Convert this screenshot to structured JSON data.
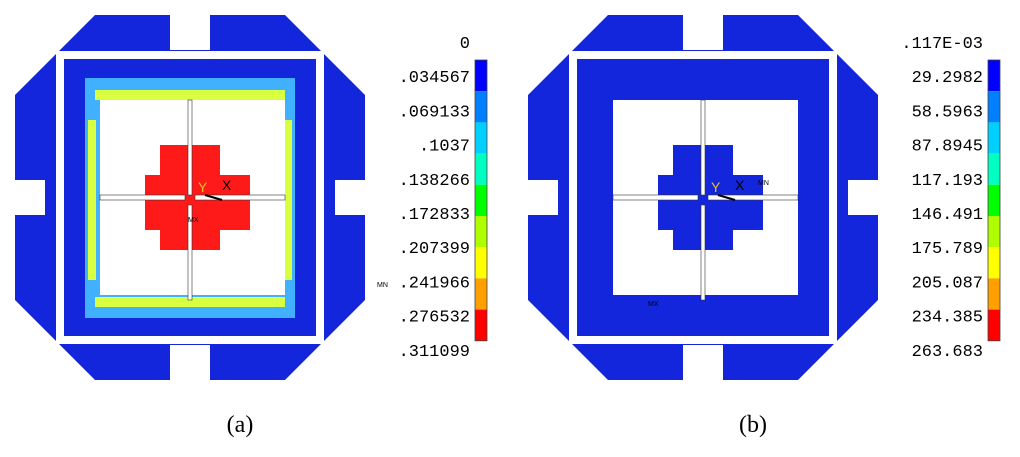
{
  "panels": [
    {
      "legend": [
        "0",
        ".034567",
        ".069133",
        ".1037",
        ".138266",
        ".172833",
        ".207399",
        ".241966",
        ".276532",
        ".311099"
      ],
      "caption": "(a)",
      "triad": [
        "Y",
        "X"
      ],
      "markers": [
        "MX",
        "MN"
      ]
    },
    {
      "legend": [
        ".117E-03",
        "29.2982",
        "58.5963",
        "87.8945",
        "117.193",
        "146.491",
        "175.789",
        "205.087",
        "234.385",
        "263.683"
      ],
      "caption": "(b)",
      "triad": [
        "Y",
        "X"
      ],
      "markers": [
        "MN",
        "MX"
      ]
    }
  ]
}
